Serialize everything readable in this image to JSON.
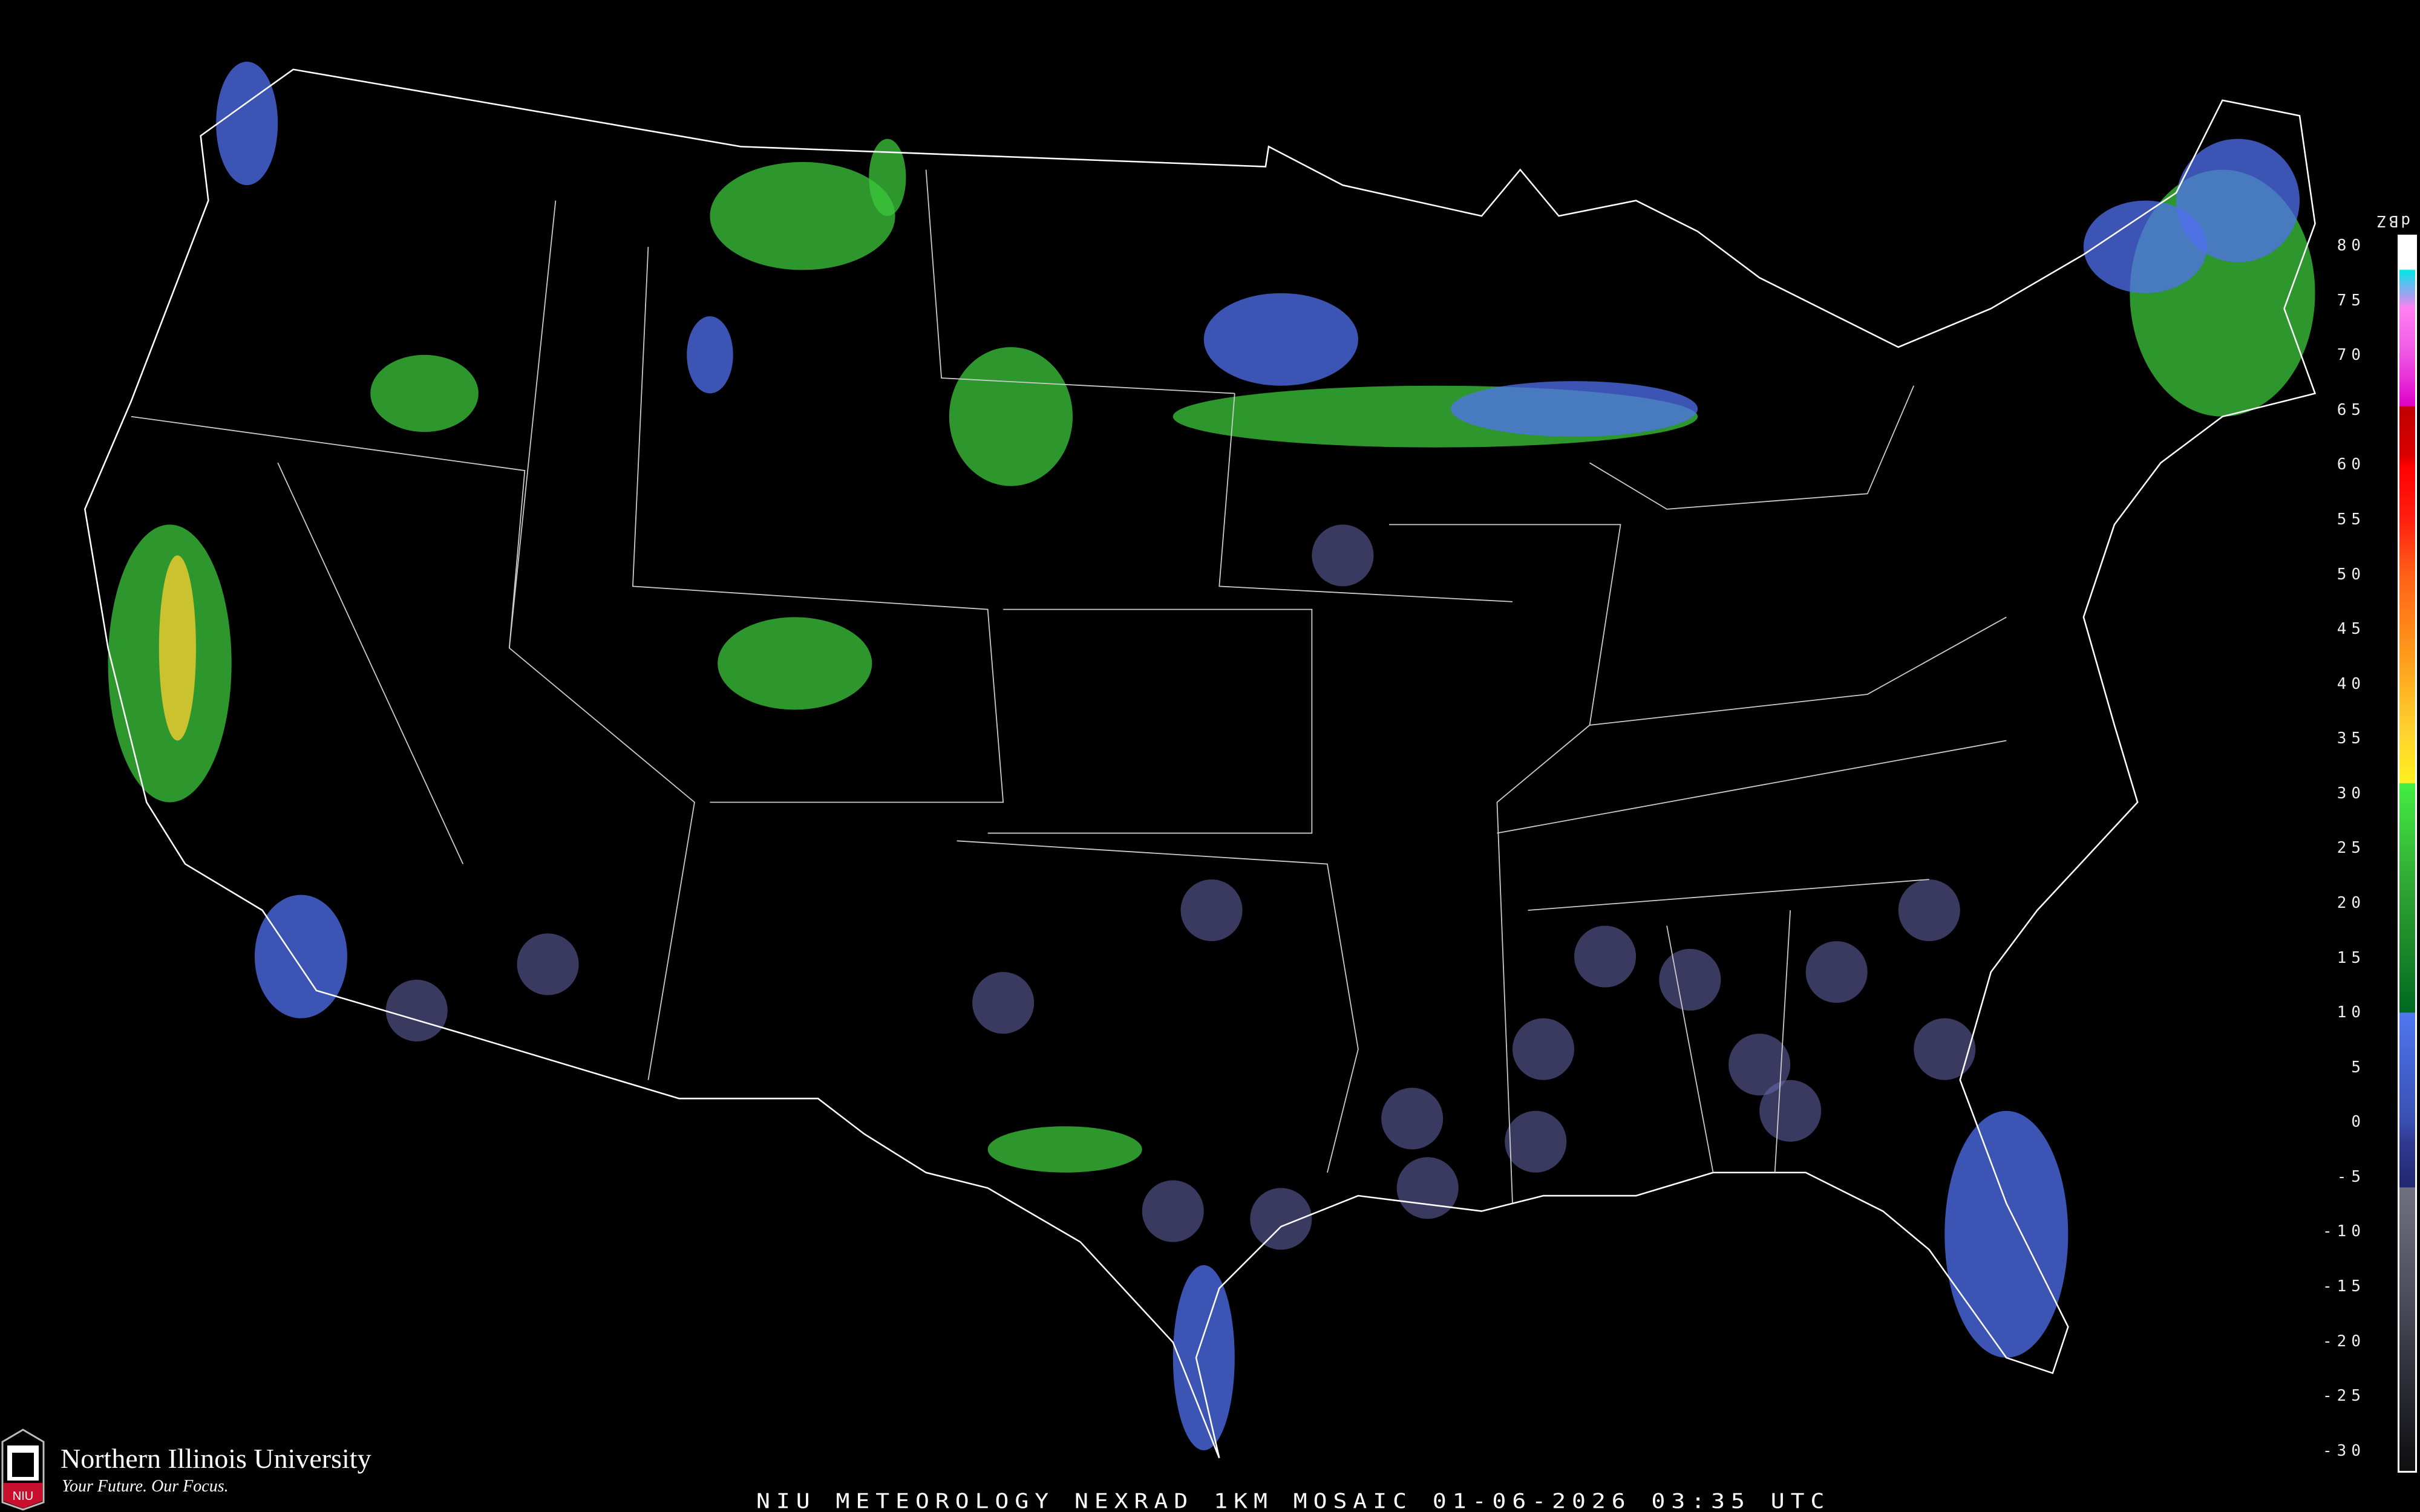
{
  "caption": "NIU METEOROLOGY NEXRAD 1KM MOSAIC  01-06-2026 03:35 UTC",
  "branding": {
    "name": "Northern Illinois University",
    "tagline": "Your Future. Our Focus.",
    "logo_text": "NIU",
    "logo_color": "#c8102e"
  },
  "legend": {
    "unit": "dBZ",
    "labels": [
      "80",
      "75",
      "70",
      "65",
      "60",
      "55",
      "50",
      "45",
      "40",
      "35",
      "30",
      "25",
      "20",
      "15",
      "10",
      "5",
      "0",
      "-5",
      "-10",
      "-15",
      "-20",
      "-25",
      "-30"
    ],
    "range": [
      -32,
      81
    ],
    "color_stops": [
      [
        81,
        "#ffffff"
      ],
      [
        78,
        "#ffffff"
      ],
      [
        77.9,
        "#00e8e8"
      ],
      [
        76.5,
        "#6ab8f0"
      ],
      [
        75.5,
        "#a8a0f0"
      ],
      [
        74.5,
        "#ff80f0"
      ],
      [
        71,
        "#f060e8"
      ],
      [
        68,
        "#e830d8"
      ],
      [
        65.5,
        "#e000c8"
      ],
      [
        65.4,
        "#c00000"
      ],
      [
        61,
        "#d80000"
      ],
      [
        60,
        "#ff0000"
      ],
      [
        55,
        "#ff2010"
      ],
      [
        50,
        "#ff6018"
      ],
      [
        45,
        "#ff8818"
      ],
      [
        40,
        "#ffb020"
      ],
      [
        36,
        "#ffd030"
      ],
      [
        31,
        "#fff020"
      ],
      [
        30.9,
        "#44ee44"
      ],
      [
        25,
        "#38c038"
      ],
      [
        20,
        "#2a9c30"
      ],
      [
        15,
        "#188428"
      ],
      [
        10,
        "#006820"
      ],
      [
        9.9,
        "#5078f0"
      ],
      [
        5,
        "#4262d0"
      ],
      [
        0,
        "#3a50b0"
      ],
      [
        -2,
        "#303890"
      ],
      [
        -6,
        "#202870"
      ],
      [
        -6.1,
        "#707080"
      ],
      [
        -15,
        "#505060"
      ],
      [
        -22,
        "#343440"
      ],
      [
        -30,
        "#141418"
      ],
      [
        -32,
        "#101010"
      ]
    ]
  },
  "colors": {
    "state_lines": "#ffffff",
    "county_lines": "#6a6a6a",
    "roads": "#8a4a20",
    "background": "#000000"
  }
}
